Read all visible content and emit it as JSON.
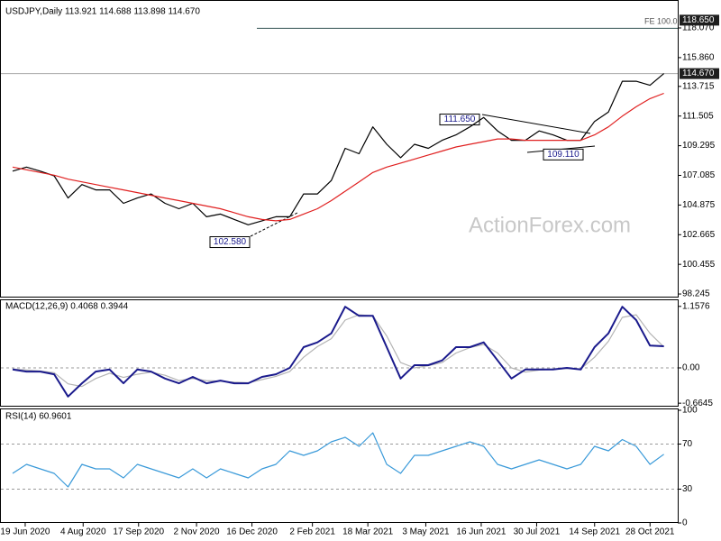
{
  "chart_data": [
    {
      "type": "line",
      "panel": "price",
      "title": "USDJPY,Daily  113.921 114.688 113.898 114.670",
      "watermark": "ActionForex.com",
      "x": [
        "2020-06-09",
        "2020-06-20",
        "2020-07-01",
        "2020-07-12",
        "2020-07-23",
        "2020-08-03",
        "2020-08-14",
        "2020-08-25",
        "2020-09-05",
        "2020-09-16",
        "2020-09-27",
        "2020-10-08",
        "2020-10-19",
        "2020-10-30",
        "2020-11-10",
        "2020-11-21",
        "2020-12-02",
        "2020-12-13",
        "2020-12-24",
        "2021-01-04",
        "2021-01-15",
        "2021-01-26",
        "2021-02-06",
        "2021-02-17",
        "2021-02-28",
        "2021-03-11",
        "2021-03-22",
        "2021-04-02",
        "2021-04-13",
        "2021-04-24",
        "2021-05-05",
        "2021-05-16",
        "2021-05-27",
        "2021-06-07",
        "2021-06-18",
        "2021-06-29",
        "2021-07-10",
        "2021-07-21",
        "2021-08-01",
        "2021-08-12",
        "2021-08-23",
        "2021-09-03",
        "2021-09-14",
        "2021-09-25",
        "2021-10-06",
        "2021-10-17",
        "2021-10-28",
        "2021-11-08"
      ],
      "xlim": [
        "2020-05-30",
        "2021-11-19"
      ],
      "series": [
        {
          "color": "#000000",
          "values": [
            107.4,
            107.7,
            107.4,
            107.05,
            105.4,
            106.4,
            106.0,
            106.0,
            105.0,
            105.4,
            105.7,
            105.0,
            104.6,
            105.0,
            104.0,
            104.2,
            103.8,
            103.4,
            103.7,
            104.0,
            104.0,
            105.7,
            105.7,
            106.7,
            109.1,
            108.7,
            110.7,
            109.4,
            108.4,
            109.4,
            109.1,
            109.7,
            110.1,
            110.7,
            111.4,
            110.4,
            109.7,
            109.7,
            110.4,
            110.1,
            109.7,
            109.7,
            111.1,
            111.8,
            114.1,
            114.1,
            113.8,
            114.67
          ]
        },
        {
          "color": "#e02020",
          "values": [
            107.7,
            107.5,
            107.3,
            107.1,
            106.8,
            106.6,
            106.4,
            106.2,
            106.0,
            105.8,
            105.6,
            105.4,
            105.2,
            105.0,
            104.8,
            104.6,
            104.3,
            104.0,
            103.8,
            103.7,
            103.8,
            104.2,
            104.6,
            105.2,
            105.9,
            106.6,
            107.3,
            107.7,
            108.0,
            108.3,
            108.6,
            108.9,
            109.2,
            109.4,
            109.6,
            109.8,
            109.8,
            109.7,
            109.7,
            109.7,
            109.7,
            109.7,
            110.1,
            110.7,
            111.5,
            112.2,
            112.8,
            113.2
          ]
        }
      ],
      "ylim": [
        97.98,
        119.75
      ],
      "yticks": [
        {
          "value": 118.07,
          "label": "118.070"
        },
        {
          "value": 115.86,
          "label": "115.860"
        },
        113.715,
        111.505,
        109.295,
        107.085,
        104.875,
        102.665,
        100.455,
        98.245
      ],
      "price_badges": [
        {
          "value": 118.65,
          "label": "118.650",
          "line_label": "FE 100.0"
        },
        {
          "value": 114.67,
          "label": "114.670"
        }
      ],
      "annotations": [
        {
          "value": 111.65,
          "label": "111.650"
        },
        {
          "value": 109.11,
          "label": "109.110"
        },
        {
          "value": 102.58,
          "label": "102.580"
        }
      ]
    },
    {
      "type": "line",
      "panel": "macd",
      "title": "MACD(12,26,9) 0.4068 0.3944",
      "x": [
        "2020-06-09",
        "2020-06-20",
        "2020-07-01",
        "2020-07-12",
        "2020-07-23",
        "2020-08-03",
        "2020-08-14",
        "2020-08-25",
        "2020-09-05",
        "2020-09-16",
        "2020-09-27",
        "2020-10-08",
        "2020-10-19",
        "2020-10-30",
        "2020-11-10",
        "2020-11-21",
        "2020-12-02",
        "2020-12-13",
        "2020-12-24",
        "2021-01-04",
        "2021-01-15",
        "2021-01-26",
        "2021-02-06",
        "2021-02-17",
        "2021-02-28",
        "2021-03-11",
        "2021-03-22",
        "2021-04-02",
        "2021-04-13",
        "2021-04-24",
        "2021-05-05",
        "2021-05-16",
        "2021-05-27",
        "2021-06-07",
        "2021-06-18",
        "2021-06-29",
        "2021-07-10",
        "2021-07-21",
        "2021-08-01",
        "2021-08-12",
        "2021-08-23",
        "2021-09-03",
        "2021-09-14",
        "2021-09-25",
        "2021-10-06",
        "2021-10-17",
        "2021-10-28",
        "2021-11-08"
      ],
      "xlim": [
        "2020-05-30",
        "2021-11-19"
      ],
      "series": [
        {
          "color": "#b4b4b4",
          "values": [
            -0.02,
            -0.04,
            -0.06,
            -0.09,
            -0.3,
            -0.35,
            -0.2,
            -0.1,
            -0.18,
            -0.12,
            -0.08,
            -0.14,
            -0.24,
            -0.2,
            -0.24,
            -0.25,
            -0.27,
            -0.28,
            -0.22,
            -0.16,
            -0.07,
            0.2,
            0.4,
            0.55,
            0.9,
            1.0,
            0.98,
            0.6,
            0.1,
            0.0,
            0.04,
            0.1,
            0.28,
            0.38,
            0.44,
            0.28,
            0.0,
            -0.08,
            -0.04,
            -0.03,
            -0.01,
            -0.02,
            0.2,
            0.5,
            0.95,
            1.0,
            0.65,
            0.3944
          ]
        },
        {
          "color": "#1a1a8c",
          "values": [
            -0.03,
            -0.07,
            -0.07,
            -0.12,
            -0.54,
            -0.29,
            -0.07,
            -0.03,
            -0.29,
            -0.03,
            -0.07,
            -0.2,
            -0.29,
            -0.17,
            -0.29,
            -0.24,
            -0.29,
            -0.29,
            -0.17,
            -0.12,
            0,
            0.39,
            0.48,
            0.65,
            1.15,
            0.98,
            0.98,
            0.39,
            -0.2,
            0.05,
            0.05,
            0.14,
            0.39,
            0.39,
            0.48,
            0.14,
            -0.2,
            -0.03,
            -0.03,
            -0.03,
            0,
            -0.03,
            0.39,
            0.65,
            1.15,
            0.9,
            0.42,
            0.4068
          ]
        }
      ],
      "ylim": [
        -0.713,
        1.273
      ],
      "yticks": [
        1.1576,
        {
          "value": 0,
          "label": "0.00"
        },
        -0.6645
      ],
      "levels": [
        0
      ]
    },
    {
      "type": "line",
      "panel": "rsi",
      "title": "RSI(14) 60.9601",
      "x": [
        "2020-06-09",
        "2020-06-20",
        "2020-07-01",
        "2020-07-12",
        "2020-07-23",
        "2020-08-03",
        "2020-08-14",
        "2020-08-25",
        "2020-09-05",
        "2020-09-16",
        "2020-09-27",
        "2020-10-08",
        "2020-10-19",
        "2020-10-30",
        "2020-11-10",
        "2020-11-21",
        "2020-12-02",
        "2020-12-13",
        "2020-12-24",
        "2021-01-04",
        "2021-01-15",
        "2021-01-26",
        "2021-02-06",
        "2021-02-17",
        "2021-02-28",
        "2021-03-11",
        "2021-03-22",
        "2021-04-02",
        "2021-04-13",
        "2021-04-24",
        "2021-05-05",
        "2021-05-16",
        "2021-05-27",
        "2021-06-07",
        "2021-06-18",
        "2021-06-29",
        "2021-07-10",
        "2021-07-21",
        "2021-08-01",
        "2021-08-12",
        "2021-08-23",
        "2021-09-03",
        "2021-09-14",
        "2021-09-25",
        "2021-10-06",
        "2021-10-17",
        "2021-10-28",
        "2021-11-08"
      ],
      "xlim": [
        "2020-05-30",
        "2021-11-19"
      ],
      "series": [
        {
          "color": "#3a9ad9",
          "values": [
            44,
            52,
            48,
            44,
            32,
            52,
            48,
            48,
            40,
            52,
            48,
            44,
            40,
            48,
            40,
            48,
            44,
            40,
            48,
            52,
            64,
            60,
            64,
            72,
            76,
            68,
            80,
            52,
            44,
            60,
            60,
            64,
            68,
            72,
            68,
            52,
            48,
            52,
            56,
            52,
            48,
            52,
            68,
            64,
            74,
            68,
            52,
            60.9601
          ]
        }
      ],
      "ylim": [
        0,
        100
      ],
      "yticks": [
        100,
        70,
        30,
        0
      ],
      "levels": [
        70,
        30
      ],
      "xticks": [
        {
          "value": "2020-06-19",
          "label": "19 Jun 2020"
        },
        {
          "value": "2020-08-04",
          "label": "4 Aug 2020"
        },
        {
          "value": "2020-09-17",
          "label": "17 Sep 2020"
        },
        {
          "value": "2020-11-02",
          "label": "2 Nov 2020"
        },
        {
          "value": "2020-12-16",
          "label": "16 Dec 2020"
        },
        {
          "value": "2021-02-02",
          "label": "2 Feb 2021"
        },
        {
          "value": "2021-03-18",
          "label": "18 Mar 2021"
        },
        {
          "value": "2021-05-03",
          "label": "3 May 2021"
        },
        {
          "value": "2021-06-16",
          "label": "16 Jun 2021"
        },
        {
          "value": "2021-07-30",
          "label": "30 Jul 2021"
        },
        {
          "value": "2021-09-14",
          "label": "14 Sep 2021"
        },
        {
          "value": "2021-10-28",
          "label": "28 Oct 2021"
        }
      ]
    }
  ]
}
